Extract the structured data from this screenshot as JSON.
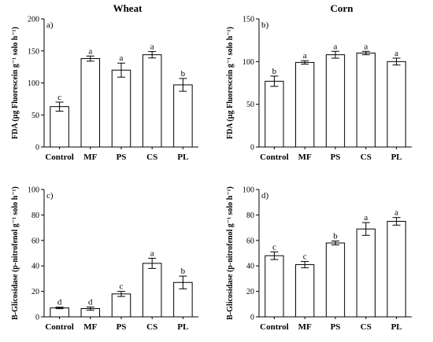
{
  "chart_data": [
    {
      "type": "bar",
      "title": "Wheat",
      "panel_label": "a)",
      "ylabel": "FDA (µg Fluorescein g⁻¹ solo h⁻¹)",
      "ylim": [
        0,
        200
      ],
      "yticks": [
        0,
        50,
        100,
        150,
        200
      ],
      "categories": [
        "Control",
        "MF",
        "PS",
        "CS",
        "PL"
      ],
      "values": [
        63,
        138,
        120,
        144,
        97
      ],
      "errors": [
        7,
        4,
        11,
        5,
        10
      ],
      "letters": [
        "c",
        "a",
        "a",
        "a",
        "b"
      ]
    },
    {
      "type": "bar",
      "title": "Corn",
      "panel_label": "b)",
      "ylabel": "FDA (µg Fluorescein g⁻¹ solo h⁻¹)",
      "ylim": [
        0,
        150
      ],
      "yticks": [
        0,
        50,
        100,
        150
      ],
      "categories": [
        "Control",
        "MF",
        "PS",
        "CS",
        "PL"
      ],
      "values": [
        77,
        99,
        108,
        110,
        100
      ],
      "errors": [
        6,
        2,
        4,
        2,
        4
      ],
      "letters": [
        "b",
        "a",
        "a",
        "a",
        "a"
      ]
    },
    {
      "type": "bar",
      "title": "",
      "panel_label": "c)",
      "ylabel": "B-Glicosidase (p-nitrofenol g⁻¹ solo h⁻¹)",
      "ylim": [
        0,
        100
      ],
      "yticks": [
        0,
        20,
        40,
        60,
        80,
        100
      ],
      "categories": [
        "Control",
        "MF",
        "PS",
        "CS",
        "PL"
      ],
      "values": [
        7,
        6.5,
        18,
        42,
        27
      ],
      "errors": [
        0.6,
        1.2,
        2,
        4,
        5
      ],
      "letters": [
        "d",
        "d",
        "c",
        "a",
        "b"
      ]
    },
    {
      "type": "bar",
      "title": "",
      "panel_label": "d)",
      "ylabel": "B-Glicosidase (p-nitrofenol g⁻¹ solo h⁻¹)",
      "ylim": [
        0,
        100
      ],
      "yticks": [
        0,
        20,
        40,
        60,
        80,
        100
      ],
      "categories": [
        "Control",
        "MF",
        "PS",
        "CS",
        "PL"
      ],
      "values": [
        48,
        41,
        58,
        69,
        75
      ],
      "errors": [
        3,
        2.5,
        1.5,
        5,
        3
      ],
      "letters": [
        "c",
        "c",
        "b",
        "a",
        "a"
      ]
    }
  ]
}
